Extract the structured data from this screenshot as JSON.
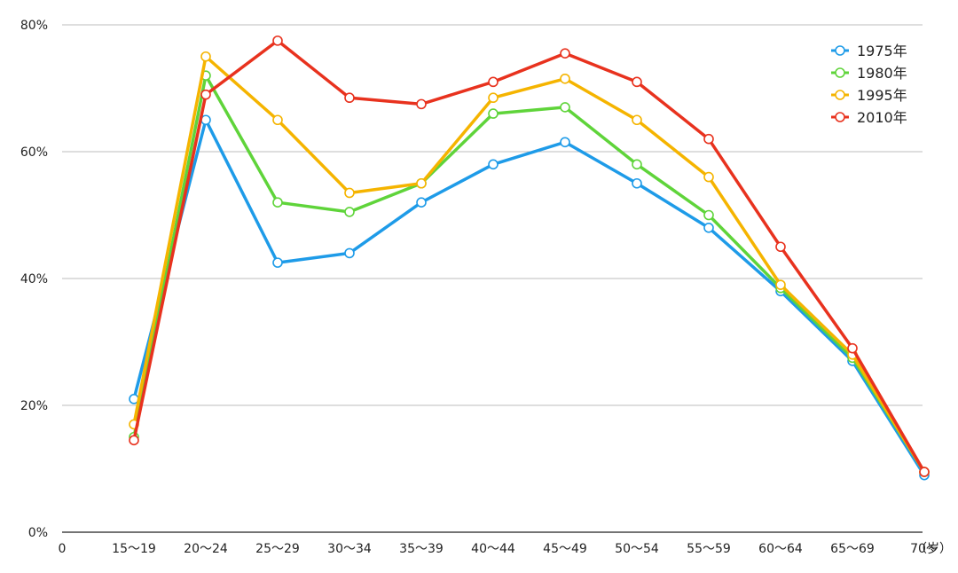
{
  "chart_data": {
    "type": "line",
    "categories": [
      "15～19",
      "20～24",
      "25～29",
      "30～34",
      "35～39",
      "40～44",
      "45～49",
      "50～54",
      "55～59",
      "60～64",
      "65～69",
      "70～"
    ],
    "x_zero_label": "0",
    "x_unit": "（岁）",
    "y_ticks": [
      "0%",
      "20%",
      "40%",
      "60%",
      "80%"
    ],
    "ylim": [
      0,
      80
    ],
    "grid": true,
    "legend_position": "top-right",
    "series": [
      {
        "name": "1975年",
        "color": "#1e9be8",
        "values": [
          21,
          65,
          42.5,
          44,
          52,
          58,
          61.5,
          55,
          48,
          38,
          27,
          9
        ]
      },
      {
        "name": "1980年",
        "color": "#5fd43a",
        "values": [
          15,
          72,
          52,
          50.5,
          55,
          66,
          67,
          58,
          50,
          38.5,
          27.5,
          9.5
        ]
      },
      {
        "name": "1995年",
        "color": "#f5b400",
        "values": [
          17,
          75,
          65,
          53.5,
          55,
          68.5,
          71.5,
          65,
          56,
          39,
          28,
          9.5
        ]
      },
      {
        "name": "2010年",
        "color": "#e8321e",
        "values": [
          14.5,
          69,
          77.5,
          68.5,
          67.5,
          71,
          75.5,
          71,
          62,
          45,
          29,
          9.5
        ]
      }
    ]
  }
}
